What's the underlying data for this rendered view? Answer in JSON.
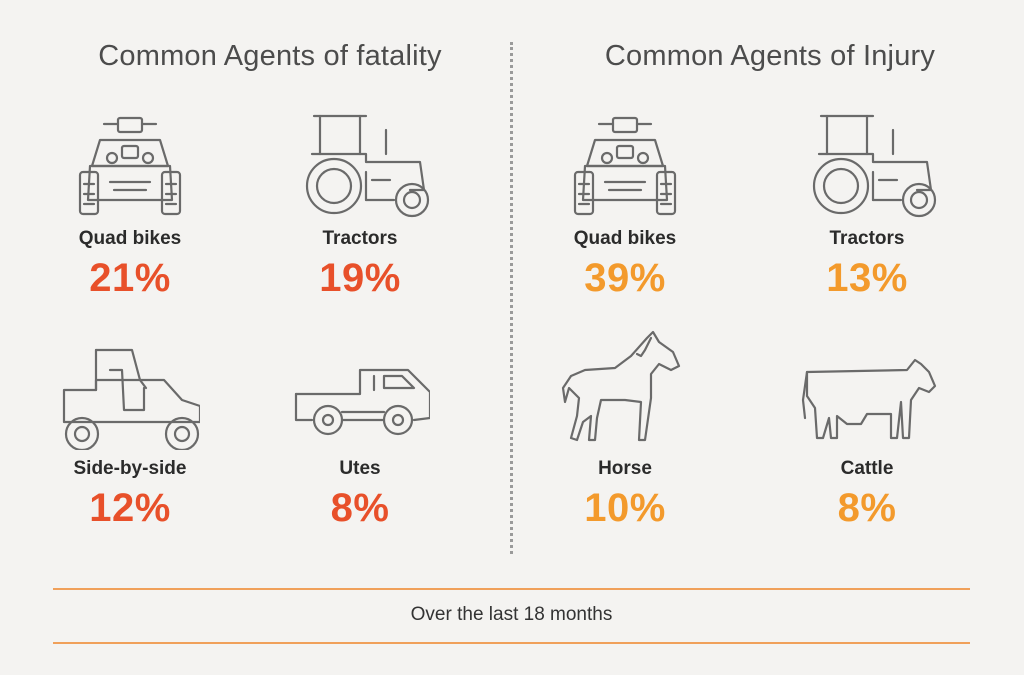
{
  "fatality": {
    "title": "Common Agents of fatality",
    "items": [
      {
        "label": "Quad bikes",
        "value": "21%",
        "icon": "quad-bike-icon"
      },
      {
        "label": "Tractors",
        "value": "19%",
        "icon": "tractor-icon"
      },
      {
        "label": "Side-by-side",
        "value": "12%",
        "icon": "side-by-side-icon"
      },
      {
        "label": "Utes",
        "value": "8%",
        "icon": "ute-icon"
      }
    ]
  },
  "injury": {
    "title": "Common Agents of Injury",
    "items": [
      {
        "label": "Quad bikes",
        "value": "39%",
        "icon": "quad-bike-icon"
      },
      {
        "label": "Tractors",
        "value": "13%",
        "icon": "tractor-icon"
      },
      {
        "label": "Horse",
        "value": "10%",
        "icon": "horse-icon"
      },
      {
        "label": "Cattle",
        "value": "8%",
        "icon": "cattle-icon"
      }
    ]
  },
  "footer": {
    "text": "Over the last 18 months"
  },
  "colors": {
    "fatality_accent": "#e8502a",
    "injury_accent": "#f39a2c",
    "rule": "#f0a05a",
    "icon_stroke": "#6a6a6a",
    "background": "#f4f3f1"
  }
}
